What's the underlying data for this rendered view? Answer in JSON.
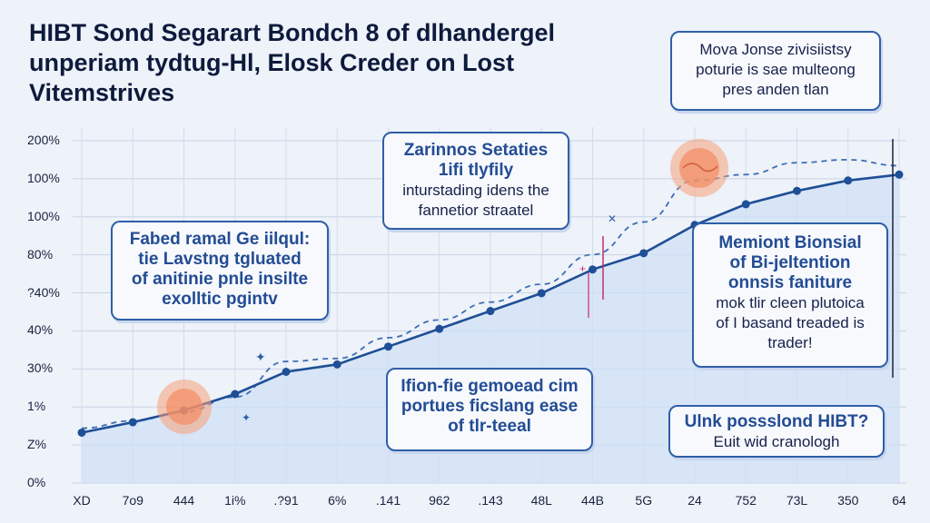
{
  "title_lines": [
    "HIBT Sond Segarart Bondch 8 of dlhandergel",
    "unperiam tydtug-Hl, Elosk Creder on Lost",
    "Vitemstrives"
  ],
  "callouts": {
    "top_right": [
      "Mova Jonse zivisiistsy",
      "poturie is sae multeong",
      "pres anden tlan"
    ],
    "center_top": [
      "Zarinnos Setaties",
      "1ifi tlyfily",
      "inturstading idens the",
      "fannetior straatel"
    ],
    "left": [
      "Fabed ramal Ge iilqul:",
      "tie Lavstng tgluated",
      "of anitinie pnle insilte",
      "exolltic pgintv"
    ],
    "right_mid": [
      "Memiont Bionsial",
      "of Bi-jeltention",
      "onnsis faniture",
      "mok tlir cleen plutoica",
      "of I basand treaded is",
      "trader!"
    ],
    "center_bottom": [
      "Ifion-fie gemoead cim",
      "portues ficslang ease",
      "of tlr-teeal"
    ],
    "bottom_right": [
      "Ulnk possslond HIBT?",
      "Euit wid cranologh"
    ]
  },
  "chart_data": {
    "type": "line",
    "title": "HIBT Sond Segarart Bondch 8 of dlhandergel unperiam tydtug-Hl, Elosk Creder on Lost Vitemstrives",
    "xlabel": "",
    "ylabel": "",
    "x_tick_labels": [
      "XD",
      "7o9",
      "444",
      "1i%",
      ".?91",
      "6%",
      ".141",
      "962",
      ".143",
      "48L",
      "44B",
      "5G",
      "24",
      "752",
      "73L",
      "350",
      "64"
    ],
    "y_tick_labels": [
      "0%",
      "Z%",
      "1%",
      "30%",
      "40%",
      "?40%",
      "80%",
      "100%",
      "100%",
      "200%"
    ],
    "grid": true,
    "series": [
      {
        "style": "solid",
        "color": "#1f4f96",
        "values": [
          1.7,
          2.05,
          2.45,
          3.0,
          3.75,
          4.0,
          4.6,
          5.2,
          5.8,
          6.4,
          7.2,
          7.75,
          8.7,
          9.4,
          9.85,
          10.2,
          10.4
        ]
      },
      {
        "style": "dashed",
        "color": "#3e6fb6",
        "values": [
          1.85,
          2.1,
          2.4,
          2.9,
          4.1,
          4.2,
          4.9,
          5.5,
          6.1,
          6.7,
          7.7,
          8.8,
          10.2,
          10.4,
          10.8,
          10.9,
          10.7
        ]
      }
    ],
    "ylim": [
      0,
      12
    ]
  }
}
